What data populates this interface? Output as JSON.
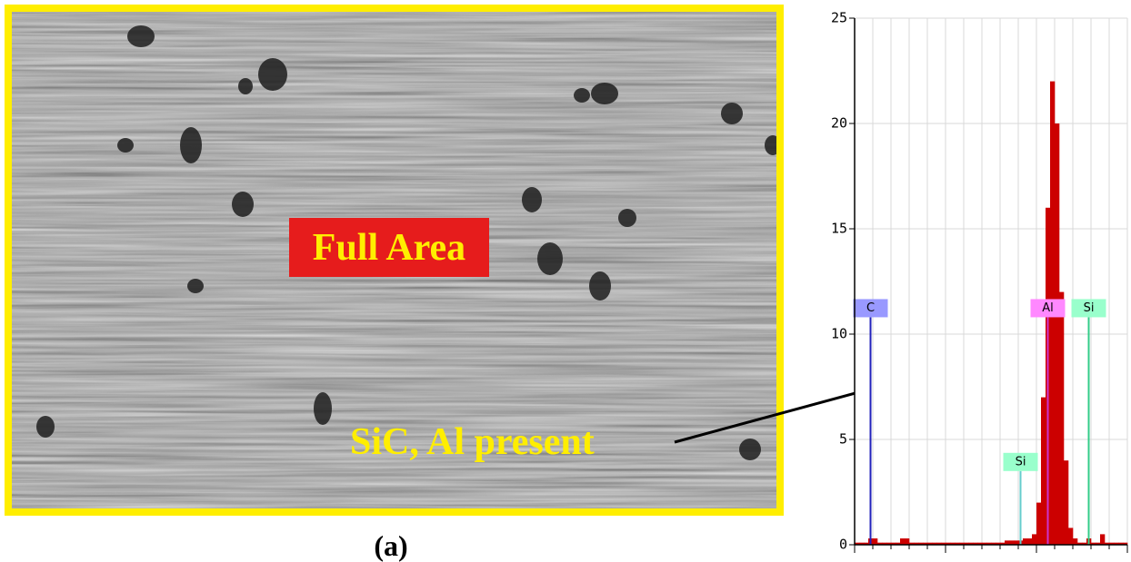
{
  "image": {
    "label": "Full Area",
    "annotation": "SiC, Al present",
    "caption": "(a)"
  },
  "chart_data": {
    "type": "bar",
    "color": "#cc0000",
    "categories": [
      null,
      null,
      null,
      null,
      null,
      null,
      null,
      null,
      null,
      null,
      null,
      null,
      null,
      null,
      null,
      null,
      null,
      null,
      null,
      null,
      null,
      null,
      null,
      null,
      null,
      null,
      null,
      null,
      null,
      null,
      null,
      null,
      null,
      null,
      null,
      null,
      null,
      null,
      null,
      null,
      null,
      null,
      null,
      null,
      null,
      null,
      null,
      null,
      null,
      null,
      null,
      null,
      null,
      null,
      null,
      null,
      null,
      null,
      null,
      null
    ],
    "values": [
      0.1,
      0.1,
      0.1,
      0.3,
      0.3,
      0.1,
      0.1,
      0.1,
      0.1,
      0.1,
      0.3,
      0.3,
      0.1,
      0.1,
      0.1,
      0.1,
      0.1,
      0.1,
      0.1,
      0.1,
      0.1,
      0.1,
      0.1,
      0.1,
      0.1,
      0.1,
      0.1,
      0.1,
      0.1,
      0.1,
      0.1,
      0.1,
      0.1,
      0.2,
      0.2,
      0.2,
      0.2,
      0.3,
      0.3,
      0.5,
      2,
      7,
      16,
      22,
      20,
      12,
      4,
      0.8,
      0.3,
      0.1,
      0.1,
      0.3,
      0.1,
      0.1,
      0.5,
      0.1,
      0.1,
      0.1,
      0.1,
      0.1
    ],
    "ylim": [
      0,
      25
    ],
    "yticks": [
      0,
      5,
      10,
      15,
      20,
      25
    ],
    "grid": true,
    "markers": [
      {
        "label": "C",
        "at": 3,
        "value": 10.8,
        "color": "#2222bb",
        "fill": "#9999ff"
      },
      {
        "label": "Si",
        "at": 36,
        "value": 3.5,
        "color": "#66cccc",
        "fill": "#99ffcc"
      },
      {
        "label": "Al",
        "at": 42,
        "value": 10.8,
        "color": "#cc33cc",
        "fill": "#ff88ff"
      },
      {
        "label": "Si",
        "at": 51,
        "value": 10.8,
        "color": "#33cc88",
        "fill": "#99ffcc"
      }
    ]
  }
}
